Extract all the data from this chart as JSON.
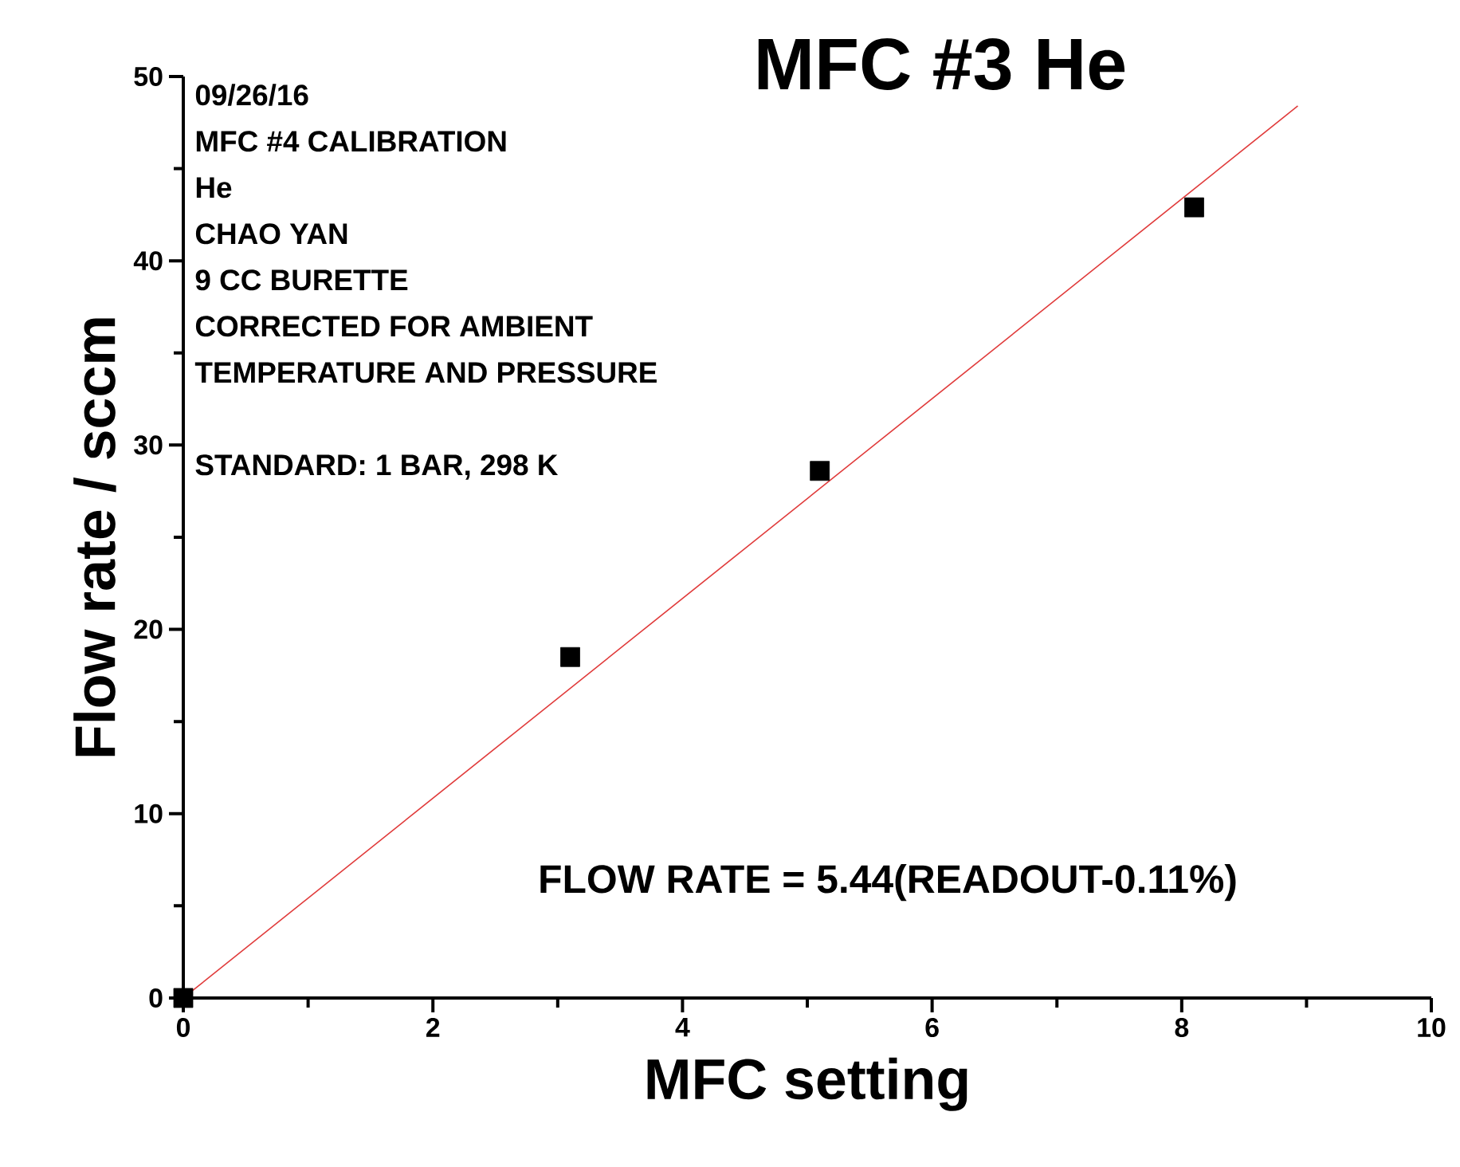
{
  "chart_data": {
    "type": "scatter",
    "title": "MFC #3 He",
    "xlabel": "MFC setting",
    "ylabel": "Flow rate / sccm",
    "xlim": [
      0,
      10
    ],
    "ylim": [
      0,
      50
    ],
    "xticks": [
      0,
      {
        "value": 1,
        "label": null
      },
      2,
      {
        "value": 3,
        "label": null
      },
      4,
      {
        "value": 5,
        "label": null
      },
      6,
      {
        "value": 7,
        "label": null
      },
      8,
      {
        "value": 9,
        "label": null
      },
      10
    ],
    "yticks": [
      0,
      {
        "value": 5,
        "label": null
      },
      10,
      {
        "value": 15,
        "label": null
      },
      20,
      {
        "value": 25,
        "label": null
      },
      30,
      {
        "value": 35,
        "label": null
      },
      40,
      {
        "value": 45,
        "label": null
      },
      50
    ],
    "marker": "square",
    "series": [
      {
        "color": "#000000",
        "x": [
          0,
          3.1,
          5.1,
          8.1
        ],
        "values": [
          0,
          18.5,
          28.6,
          42.9
        ]
      },
      {
        "type": "line",
        "color": "#e03a3a",
        "marker": "none",
        "line_style": "solid",
        "x": [
          0,
          8.93
        ],
        "values": [
          0,
          48.4
        ]
      }
    ],
    "annotations": [
      "09/26/16",
      "MFC #4 CALIBRATION",
      "He",
      "CHAO YAN",
      "9 CC BURETTE",
      "CORRECTED FOR AMBIENT",
      "TEMPERATURE AND PRESSURE",
      "STANDARD: 1 BAR, 298 K",
      {
        "text": "FLOW RATE = 5.44(READOUT-0.11%)"
      }
    ]
  }
}
